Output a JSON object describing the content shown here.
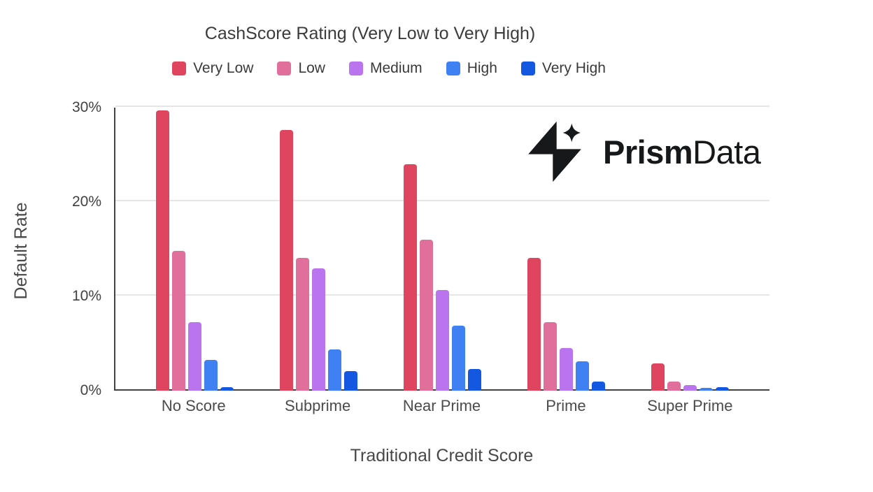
{
  "chart_data": {
    "type": "bar",
    "title": "CashScore Rating (Very Low to Very High)",
    "xlabel": "Traditional Credit Score",
    "ylabel": "Default Rate",
    "categories": [
      "No Score",
      "Subprime",
      "Near Prime",
      "Prime",
      "Super Prime"
    ],
    "series": [
      {
        "name": "Very Low",
        "color": "#E0455F",
        "values": [
          29.7,
          27.6,
          24.0,
          14.1,
          2.9
        ]
      },
      {
        "name": "Low",
        "color": "#E0709B",
        "values": [
          14.8,
          14.1,
          16.0,
          7.3,
          1.0
        ]
      },
      {
        "name": "Medium",
        "color": "#B974EE",
        "values": [
          7.3,
          13.0,
          10.7,
          4.5,
          0.6
        ]
      },
      {
        "name": "High",
        "color": "#3F80F2",
        "values": [
          3.3,
          4.4,
          6.9,
          3.1,
          0.3
        ]
      },
      {
        "name": "Very High",
        "color": "#1457E0",
        "values": [
          0.4,
          2.1,
          2.3,
          1.0,
          0.4
        ]
      }
    ],
    "ylim": [
      0,
      30
    ],
    "yticks": [
      {
        "label": "0%",
        "value": 0
      },
      {
        "label": "10%",
        "value": 10
      },
      {
        "label": "20%",
        "value": 20
      },
      {
        "label": "30%",
        "value": 30
      }
    ],
    "grid": true,
    "legend_position": "top",
    "axis_color": "#424242",
    "gridline_color": "#E6E6E6"
  },
  "branding": {
    "logo_text_bold": "Prism",
    "logo_text_regular": "Data",
    "logo_color": "#17181A"
  }
}
